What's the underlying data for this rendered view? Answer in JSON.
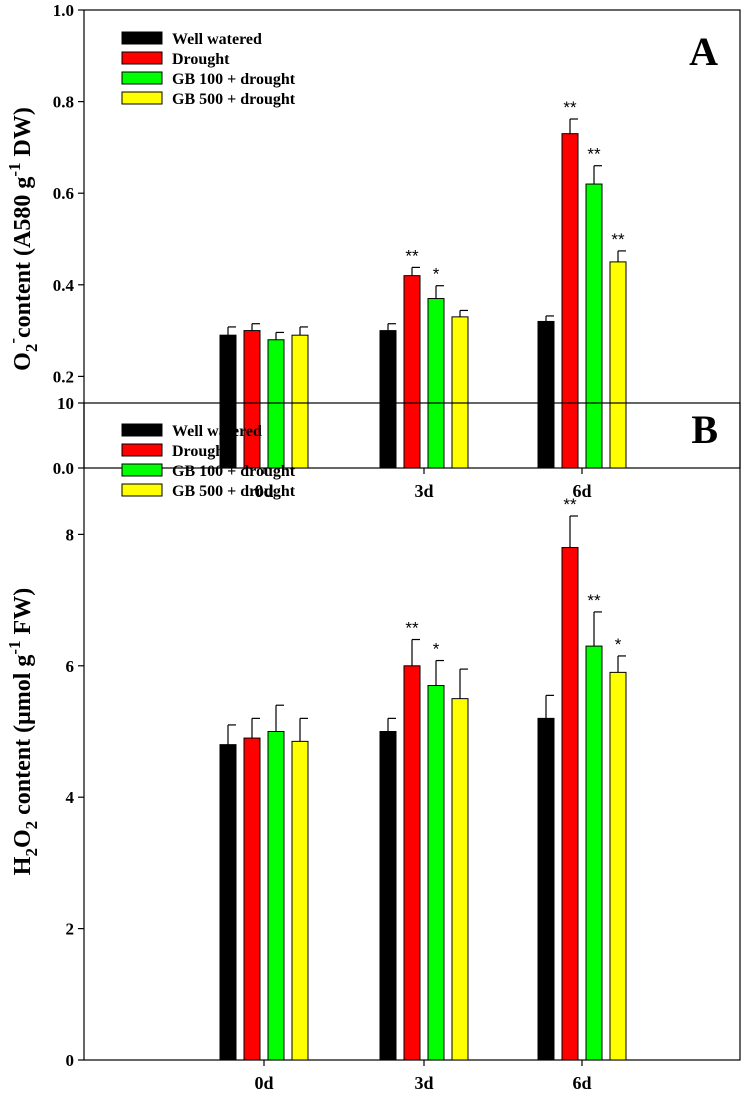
{
  "chart_data": [
    {
      "type": "bar",
      "panel": "A",
      "ylabel": {
        "base": "O",
        "sub": "2",
        "sup": "-",
        "text": "content (A580 g",
        "unit_sup": "-1",
        "tail": " DW)"
      },
      "ylim": [
        0,
        1.0
      ],
      "yticks": [
        "0.0",
        "0.2",
        "0.4",
        "0.6",
        "0.8",
        "1.0"
      ],
      "yticks_values": [
        0,
        0.2,
        0.4,
        0.6,
        0.8,
        1.0
      ],
      "categories": [
        "0d",
        "3d",
        "6d"
      ],
      "series": [
        {
          "name": "Well watered",
          "color": "#000000",
          "values": [
            0.29,
            0.3,
            0.32
          ],
          "errors": [
            0.018,
            0.015,
            0.012
          ],
          "sig": [
            "",
            "",
            ""
          ]
        },
        {
          "name": "Drought",
          "color": "#ff0000",
          "values": [
            0.3,
            0.42,
            0.73
          ],
          "errors": [
            0.015,
            0.018,
            0.032
          ],
          "sig": [
            "",
            "**",
            "**"
          ]
        },
        {
          "name": "GB 100 + drought",
          "color": "#00ff00",
          "values": [
            0.28,
            0.37,
            0.62
          ],
          "errors": [
            0.016,
            0.028,
            0.04
          ],
          "sig": [
            "",
            "*",
            "**"
          ]
        },
        {
          "name": "GB 500 + drought",
          "color": "#ffff00",
          "values": [
            0.29,
            0.33,
            0.45
          ],
          "errors": [
            0.018,
            0.014,
            0.024
          ],
          "sig": [
            "",
            "",
            "**"
          ]
        }
      ],
      "legend": "top-left",
      "grid": false
    },
    {
      "type": "bar",
      "panel": "B",
      "ylabel": {
        "base": "H",
        "sub": "2",
        "base2": "O",
        "sub2": "2",
        "text": " content (μmol g",
        "unit_sup": "-1",
        "tail": " FW)"
      },
      "ylim": [
        0,
        10
      ],
      "yticks": [
        "0",
        "2",
        "4",
        "6",
        "8",
        "10"
      ],
      "yticks_values": [
        0,
        2,
        4,
        6,
        8,
        10
      ],
      "categories": [
        "0d",
        "3d",
        "6d"
      ],
      "series": [
        {
          "name": "Well watered",
          "color": "#000000",
          "values": [
            4.8,
            5.0,
            5.2
          ],
          "errors": [
            0.3,
            0.2,
            0.35
          ],
          "sig": [
            "",
            "",
            ""
          ]
        },
        {
          "name": "Drought",
          "color": "#ff0000",
          "values": [
            4.9,
            6.0,
            7.8
          ],
          "errors": [
            0.3,
            0.4,
            0.48
          ],
          "sig": [
            "",
            "**",
            "**"
          ]
        },
        {
          "name": "GB 100 + drought",
          "color": "#00ff00",
          "values": [
            5.0,
            5.7,
            6.3
          ],
          "errors": [
            0.4,
            0.38,
            0.52
          ],
          "sig": [
            "",
            "*",
            "**"
          ]
        },
        {
          "name": "GB 500 + drought",
          "color": "#ffff00",
          "values": [
            4.85,
            5.5,
            5.9
          ],
          "errors": [
            0.35,
            0.45,
            0.25
          ],
          "sig": [
            "",
            "",
            "*"
          ]
        }
      ],
      "legend": "top-left",
      "grid": false
    }
  ]
}
